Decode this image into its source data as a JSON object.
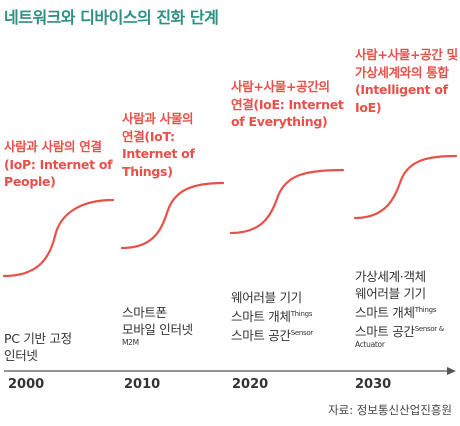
{
  "title": "네트워크와 디바이스의 진화 단계",
  "accent_color": "#e8504a",
  "title_color": "#2f8f83",
  "stages": [
    {
      "year": "2000",
      "head": [
        "사람과 사람의 연결",
        "(IoP: Internet of",
        "People)"
      ],
      "body": [
        {
          "text": "PC 기반 고정",
          "sup": ""
        },
        {
          "text": "인터넷",
          "sup": ""
        }
      ],
      "sub": ""
    },
    {
      "year": "2010",
      "head": [
        "사람과 사물의",
        "연결(IoT:",
        "Internet of",
        "Things)"
      ],
      "body": [
        {
          "text": "스마트폰",
          "sup": ""
        },
        {
          "text": "모바일 인터넷",
          "sup": ""
        }
      ],
      "sub": "M2M"
    },
    {
      "year": "2020",
      "head": [
        "사람+사물+공간의",
        "연결(IoE: Internet",
        "of Everything)"
      ],
      "body": [
        {
          "text": "웨어러블 기기",
          "sup": ""
        },
        {
          "text": "스마트 개체",
          "sup": "Things"
        },
        {
          "text": "스마트 공간",
          "sup": "Sensor"
        }
      ],
      "sub": ""
    },
    {
      "year": "2030",
      "head": [
        "사람+사물+공간 및",
        "가상세계와의 통합",
        "(Intelligent of",
        "IoE)"
      ],
      "body": [
        {
          "text": "가상세계·객체",
          "sup": ""
        },
        {
          "text": "웨어러블 기기",
          "sup": ""
        },
        {
          "text": "스마트 개체",
          "sup": "Things"
        },
        {
          "text": "스마트 공간",
          "sup": "Sensor &"
        }
      ],
      "sub": "Actuator"
    }
  ],
  "source": "자료: 정보통신산업진흥원"
}
